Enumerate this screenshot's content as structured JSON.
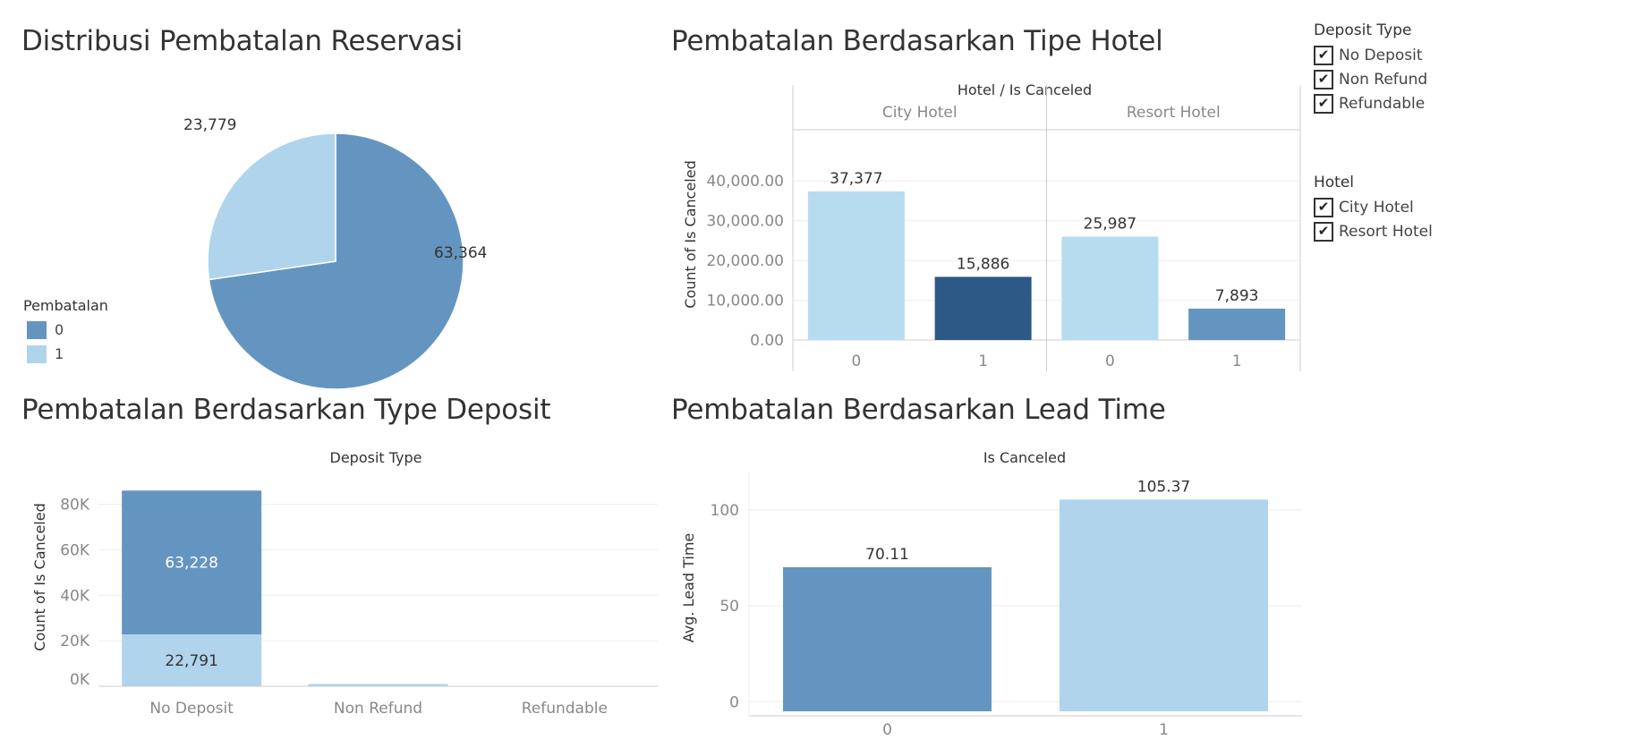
{
  "colors": {
    "not_canceled": "#6495c0",
    "canceled": "#b0d4ec",
    "highlight_dark": "#2c5985",
    "grid": "#eeeeee",
    "axis": "#cccccc"
  },
  "panels": {
    "pie_title": "Distribusi Pembatalan Reservasi",
    "hotel_title": "Pembatalan Berdasarkan Tipe Hotel",
    "deposit_title": "Pembatalan Berdasarkan Type Deposit",
    "lead_title": "Pembatalan Berdasarkan Lead Time"
  },
  "legend": {
    "title": "Pembatalan",
    "items": [
      {
        "label": "0",
        "color": "#6495c0"
      },
      {
        "label": "1",
        "color": "#b0d4ec"
      }
    ]
  },
  "filters": {
    "deposit_type": {
      "title": "Deposit Type",
      "items": [
        "No Deposit",
        "Non Refund",
        "Refundable"
      ]
    },
    "hotel": {
      "title": "Hotel",
      "items": [
        "City Hotel",
        "Resort Hotel"
      ]
    }
  },
  "chart_data": [
    {
      "id": "pie",
      "type": "pie",
      "slices": [
        {
          "label": "0",
          "value": 63364,
          "value_label": "63,364",
          "color": "#6495c0"
        },
        {
          "label": "1",
          "value": 23779,
          "value_label": "23,779",
          "color": "#b0d4ec"
        }
      ]
    },
    {
      "id": "hotel",
      "type": "bar",
      "header": "Hotel  /  Is Canceled",
      "ylabel": "Count of Is Canceled",
      "ylim": [
        0,
        45000
      ],
      "yticks": [
        0,
        10000,
        20000,
        30000,
        40000
      ],
      "ytick_labels": [
        "0.00",
        "10,000.00",
        "20,000.00",
        "30,000.00",
        "40,000.00"
      ],
      "groups": [
        {
          "name": "City Hotel",
          "bars": [
            {
              "category": "0",
              "value": 37377,
              "value_label": "37,377",
              "color": "#b7dcf0"
            },
            {
              "category": "1",
              "value": 15886,
              "value_label": "15,886",
              "color": "#2c5985"
            }
          ]
        },
        {
          "name": "Resort Hotel",
          "bars": [
            {
              "category": "0",
              "value": 25987,
              "value_label": "25,987",
              "color": "#b7dcf0"
            },
            {
              "category": "1",
              "value": 7893,
              "value_label": "7,893",
              "color": "#6495c0"
            }
          ]
        }
      ]
    },
    {
      "id": "deposit",
      "type": "bar",
      "stacked": true,
      "header": "Deposit Type",
      "ylabel": "Count of Is Canceled",
      "ylim": [
        0,
        90000
      ],
      "yticks": [
        0,
        20000,
        40000,
        60000,
        80000
      ],
      "ytick_labels": [
        "0K",
        "20K",
        "40K",
        "60K",
        "80K"
      ],
      "categories": [
        "No Deposit",
        "Non Refund",
        "Refundable"
      ],
      "series": [
        {
          "name": "1",
          "values": [
            22791,
            1000,
            0
          ],
          "labels": [
            "22,791",
            "",
            ""
          ],
          "color": "#b0d4ec"
        },
        {
          "name": "0",
          "values": [
            63228,
            0,
            0
          ],
          "labels": [
            "63,228",
            "",
            ""
          ],
          "color": "#6495c0"
        }
      ]
    },
    {
      "id": "lead",
      "type": "bar",
      "header": "Is Canceled",
      "ylabel": "Avg. Lead Time",
      "ylim": [
        -5,
        120
      ],
      "yticks": [
        0,
        50,
        100
      ],
      "ytick_labels": [
        "0",
        "50",
        "100"
      ],
      "categories": [
        "0",
        "1"
      ],
      "values": [
        70.11,
        105.37
      ],
      "value_labels": [
        "70.11",
        "105.37"
      ],
      "colors": [
        "#6495c0",
        "#b0d4ec"
      ]
    }
  ]
}
